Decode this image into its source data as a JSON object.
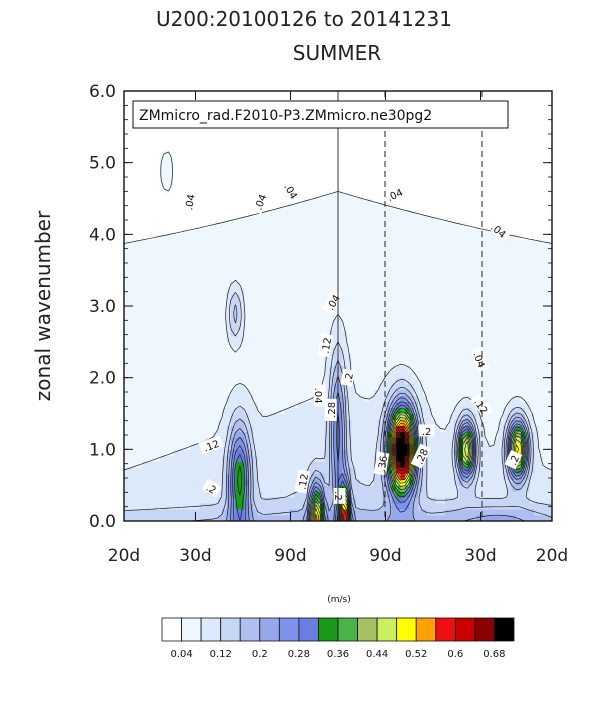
{
  "chart_data": {
    "type": "heatmap",
    "title": "U200:20100126 to 20141231",
    "subtitle": "SUMMER",
    "annotation": "ZMmicro_rad.F2010-P3.ZMmicro.ne30pg2",
    "ylabel": "zonal wavenumber",
    "ylim": [
      0,
      6
    ],
    "yticks": [
      "0.0",
      "1.0",
      "2.0",
      "3.0",
      "4.0",
      "5.0",
      "6.0"
    ],
    "xticks": [
      "20d",
      "30d",
      "90d",
      "90d",
      "30d",
      "20d"
    ],
    "x": [
      -0.05,
      -0.0333,
      -0.0111,
      0.0111,
      0.0333,
      0.05
    ],
    "xlim": [
      -0.05,
      0.05
    ],
    "units": "(m/s)",
    "colorbar_labels": [
      "0.04",
      "0.12",
      "0.2",
      "0.28",
      "0.36",
      "0.44",
      "0.52",
      "0.6",
      "0.68"
    ],
    "levels": [
      0.04,
      0.08,
      0.12,
      0.16,
      0.2,
      0.24,
      0.28,
      0.32,
      0.36,
      0.4,
      0.44,
      0.48,
      0.52,
      0.56,
      0.6,
      0.64,
      0.68
    ],
    "colors": [
      "#ffffff",
      "#eef6fe",
      "#dce9fb",
      "#c8d6f5",
      "#aebff0",
      "#96a8ec",
      "#7d92e8",
      "#6a7de4",
      "#1a9a1a",
      "#48b448",
      "#a4c264",
      "#c8f060",
      "#ffff00",
      "#ffa000",
      "#ee1010",
      "#c80000",
      "#880000",
      "#000000"
    ],
    "contour_labels": [
      {
        "text": ".04",
        "fx": -0.0346,
        "fy": 4.45,
        "rot": -80
      },
      {
        "text": ".04",
        "fx": -0.0181,
        "fy": 4.45,
        "rot": -70
      },
      {
        "text": ".04",
        "fx": -0.011,
        "fy": 4.6,
        "rot": 60
      },
      {
        "text": ".04",
        "fx": 0.0133,
        "fy": 4.55,
        "rot": -25
      },
      {
        "text": ".04",
        "fx": 0.0375,
        "fy": 4.05,
        "rot": 40
      },
      {
        "text": ".04",
        "fx": -0.0045,
        "fy": 1.75,
        "rot": 90
      },
      {
        "text": ".04",
        "fx": -0.0011,
        "fy": 3.05,
        "rot": -60
      },
      {
        "text": ".04",
        "fx": 0.033,
        "fy": 2.25,
        "rot": 70
      },
      {
        "text": ".12",
        "fx": -0.0027,
        "fy": 2.45,
        "rot": -80
      },
      {
        "text": ".12",
        "fx": -0.0296,
        "fy": 1.05,
        "rot": -20
      },
      {
        "text": ".12",
        "fx": -0.0081,
        "fy": 0.55,
        "rot": -80
      },
      {
        "text": ".12",
        "fx": 0.0334,
        "fy": 1.6,
        "rot": 55
      },
      {
        "text": ".2",
        "fx": -0.0296,
        "fy": 0.45,
        "rot": 30
      },
      {
        "text": ".2",
        "fx": 0.0025,
        "fy": 2.0,
        "rot": -80
      },
      {
        "text": ".2",
        "fx": 0.0001,
        "fy": 0.35,
        "rot": 90
      },
      {
        "text": ".2",
        "fx": 0.0207,
        "fy": 1.25,
        "rot": 0
      },
      {
        "text": ".2",
        "fx": 0.0412,
        "fy": 0.85,
        "rot": -65
      },
      {
        "text": ".28",
        "fx": -0.0015,
        "fy": 1.55,
        "rot": -90
      },
      {
        "text": ".28",
        "fx": 0.0196,
        "fy": 0.9,
        "rot": -65
      },
      {
        "text": ".36",
        "fx": 0.0104,
        "fy": 0.8,
        "rot": -80
      }
    ]
  }
}
